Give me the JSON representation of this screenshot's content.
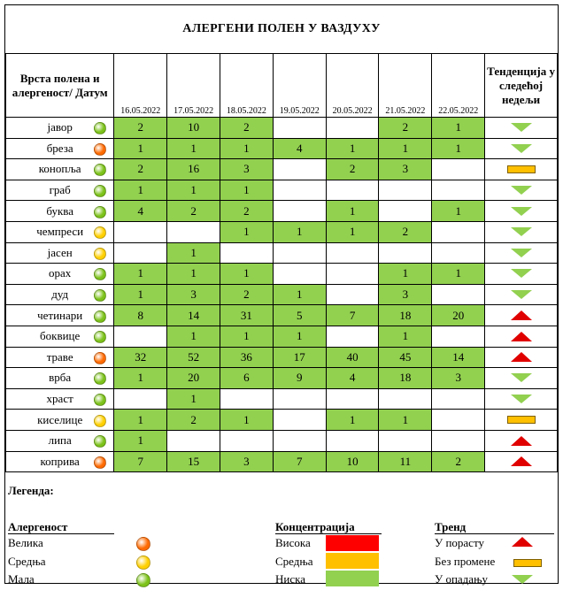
{
  "title": "АЛЕРГЕНИ ПОЛЕН У ВАЗДУХУ",
  "header": {
    "first": "Врста полена и алергеност/ Датум",
    "dates": [
      "16.05.2022",
      "17.05.2022",
      "18.05.2022",
      "19.05.2022",
      "20.05.2022",
      "21.05.2022",
      "22.05.2022"
    ],
    "last": "Тенденција у следећој недељи"
  },
  "colors": {
    "high": "#ff0000",
    "medium": "#ffc000",
    "low": "#92d050"
  },
  "rows": [
    {
      "name": "јавор",
      "allergen": "low",
      "values": [
        "2",
        "10",
        "2",
        "",
        "",
        "2",
        "1"
      ],
      "trend": "down"
    },
    {
      "name": "бреза",
      "allergen": "high",
      "values": [
        "1",
        "1",
        "1",
        "4",
        "1",
        "1",
        "1"
      ],
      "trend": "down"
    },
    {
      "name": "конопља",
      "allergen": "low",
      "values": [
        "2",
        "16",
        "3",
        "",
        "2",
        "3",
        ""
      ],
      "trend": "flat"
    },
    {
      "name": "граб",
      "allergen": "low",
      "values": [
        "1",
        "1",
        "1",
        "",
        "",
        "",
        ""
      ],
      "trend": "down"
    },
    {
      "name": "буква",
      "allergen": "low",
      "values": [
        "4",
        "2",
        "2",
        "",
        "1",
        "",
        "1"
      ],
      "trend": "down"
    },
    {
      "name": "чемпреси",
      "allergen": "medium",
      "values": [
        "",
        "",
        "1",
        "1",
        "1",
        "2",
        ""
      ],
      "trend": "down"
    },
    {
      "name": "јасен",
      "allergen": "medium",
      "values": [
        "",
        "1",
        "",
        "",
        "",
        "",
        ""
      ],
      "trend": "down"
    },
    {
      "name": "орах",
      "allergen": "low",
      "values": [
        "1",
        "1",
        "1",
        "",
        "",
        "1",
        "1"
      ],
      "trend": "down"
    },
    {
      "name": "дуд",
      "allergen": "low",
      "values": [
        "1",
        "3",
        "2",
        "1",
        "",
        "3",
        ""
      ],
      "trend": "down"
    },
    {
      "name": "четинари",
      "allergen": "low",
      "values": [
        "8",
        "14",
        "31",
        "5",
        "7",
        "18",
        "20"
      ],
      "trend": "up"
    },
    {
      "name": "боквице",
      "allergen": "low",
      "values": [
        "",
        "1",
        "1",
        "1",
        "",
        "1",
        ""
      ],
      "trend": "up"
    },
    {
      "name": "траве",
      "allergen": "high",
      "values": [
        "32",
        "52",
        "36",
        "17",
        "40",
        "45",
        "14"
      ],
      "trend": "up"
    },
    {
      "name": "врба",
      "allergen": "low",
      "values": [
        "1",
        "20",
        "6",
        "9",
        "4",
        "18",
        "3"
      ],
      "trend": "down"
    },
    {
      "name": "храст",
      "allergen": "low",
      "values": [
        "",
        "1",
        "",
        "",
        "",
        "",
        ""
      ],
      "trend": "down"
    },
    {
      "name": "киселице",
      "allergen": "medium",
      "values": [
        "1",
        "2",
        "1",
        "",
        "1",
        "1",
        ""
      ],
      "trend": "flat"
    },
    {
      "name": "липа",
      "allergen": "low",
      "values": [
        "1",
        "",
        "",
        "",
        "",
        "",
        ""
      ],
      "trend": "up"
    },
    {
      "name": "коприва",
      "allergen": "high",
      "values": [
        "7",
        "15",
        "3",
        "7",
        "10",
        "11",
        "2"
      ],
      "trend": "up"
    }
  ],
  "legend": {
    "title": "Легенда:",
    "allergen_heading": "Алергеност",
    "allergen_items": [
      "Велика",
      "Средња",
      "Мала"
    ],
    "concentration_heading": "Концентрација",
    "concentration_items": [
      "Висока",
      "Средња",
      "Ниска"
    ],
    "trend_heading": "Тренд",
    "trend_items": [
      "У порасту",
      "Без промене",
      "У опадању"
    ]
  }
}
